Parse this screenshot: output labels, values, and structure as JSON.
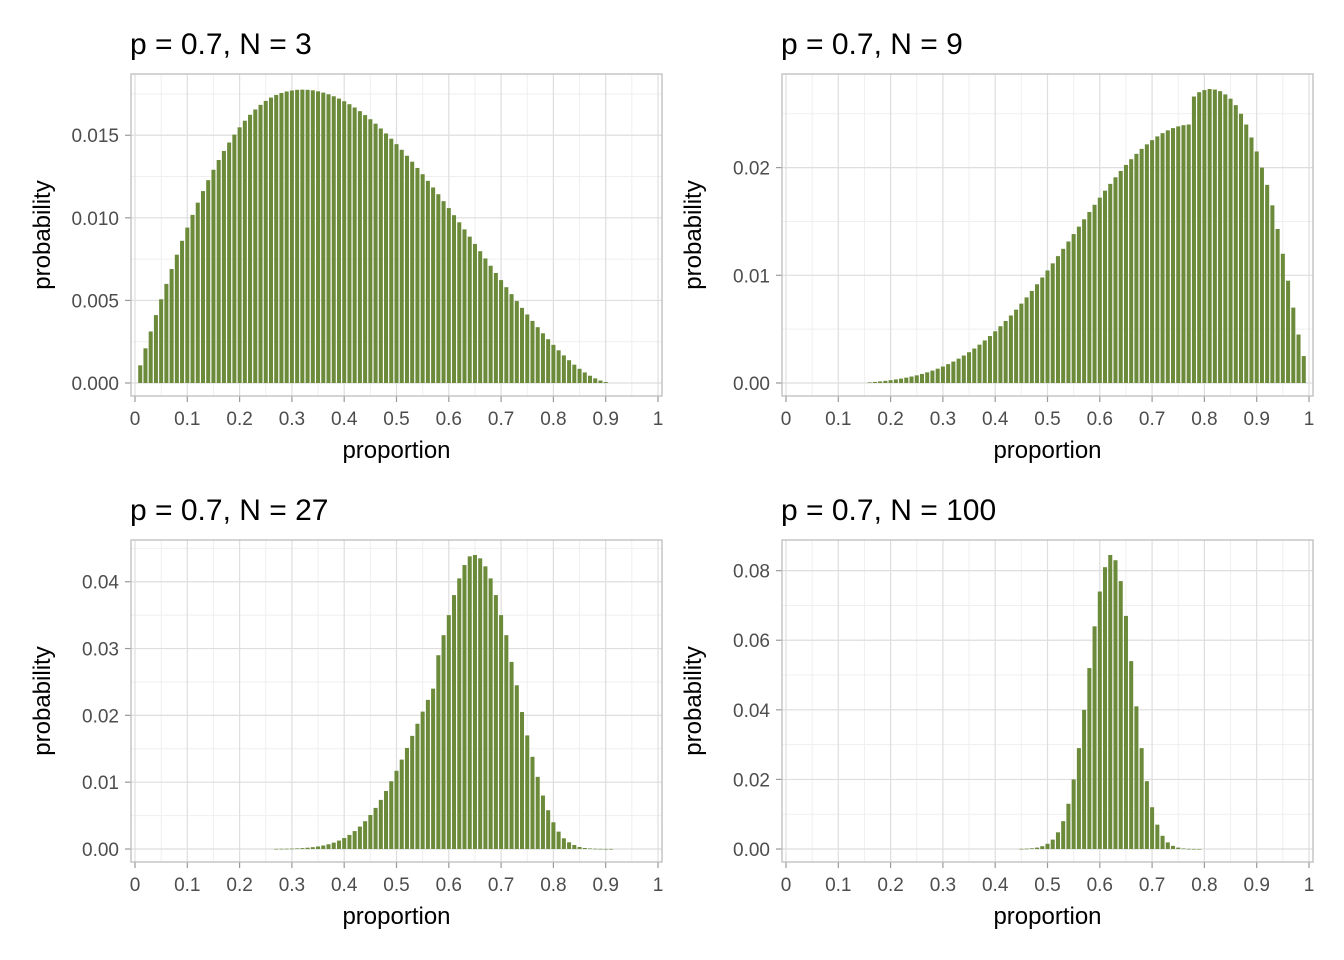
{
  "colors": {
    "bar": "#6b8a3a",
    "grid_major": "#dedede",
    "grid_minor": "#efefef",
    "panel_border": "#bdbdbd",
    "axis_tick": "#9a9a9a",
    "tick_label": "#4d4d4d"
  },
  "chart_data": [
    {
      "type": "bar",
      "title": "p = 0.7, N = 3",
      "xlabel": "proportion",
      "ylabel": "probability",
      "p": 0.7,
      "N": 3,
      "x_ticks": [
        "0",
        "0.1",
        "0.2",
        "0.3",
        "0.4",
        "0.5",
        "0.6",
        "0.7",
        "0.8",
        "0.9",
        "1"
      ],
      "y_ticks": [
        "0.000",
        "0.005",
        "0.010",
        "0.015"
      ],
      "y_tick_values": [
        0,
        0.005,
        0.01,
        0.015
      ],
      "xlim": [
        0,
        1
      ],
      "ylim": [
        0,
        0.0178
      ],
      "grid": true,
      "categories_note": "proportion bins 0.01 to 0.99 step 0.01",
      "values": [
        0.00107,
        0.0021,
        0.00312,
        0.00411,
        0.00507,
        0.006,
        0.0069,
        0.00777,
        0.00861,
        0.00941,
        0.01018,
        0.01092,
        0.01162,
        0.01228,
        0.01291,
        0.0135,
        0.01405,
        0.01456,
        0.01504,
        0.01548,
        0.01588,
        0.01624,
        0.01656,
        0.01684,
        0.01708,
        0.01728,
        0.01744,
        0.01756,
        0.01765,
        0.01771,
        0.01775,
        0.01776,
        0.01775,
        0.01772,
        0.01766,
        0.01758,
        0.01748,
        0.01736,
        0.01722,
        0.01706,
        0.01688,
        0.01668,
        0.01646,
        0.01622,
        0.01597,
        0.0157,
        0.01541,
        0.01511,
        0.01479,
        0.01446,
        0.01412,
        0.01376,
        0.0134,
        0.01302,
        0.01264,
        0.01224,
        0.01184,
        0.01143,
        0.01101,
        0.01059,
        0.01016,
        0.00973,
        0.0093,
        0.00886,
        0.00842,
        0.00798,
        0.00754,
        0.0071,
        0.00666,
        0.00623,
        0.0058,
        0.00538,
        0.00496,
        0.00455,
        0.00415,
        0.00376,
        0.00338,
        0.00301,
        0.00265,
        0.00231,
        0.00198,
        0.00167,
        0.00138,
        0.00111,
        0.00086,
        0.00064,
        0.00044,
        0.00028,
        0.00015,
        6e-05,
        0.0,
        0.0,
        0.0,
        0.0,
        0.0,
        0.0,
        0.0,
        0.0,
        0.0
      ]
    },
    {
      "type": "bar",
      "title": "p = 0.7, N = 9",
      "xlabel": "proportion",
      "ylabel": "probability",
      "p": 0.7,
      "N": 9,
      "x_ticks": [
        "0",
        "0.1",
        "0.2",
        "0.3",
        "0.4",
        "0.5",
        "0.6",
        "0.7",
        "0.8",
        "0.9",
        "1"
      ],
      "y_ticks": [
        "0.00",
        "0.01",
        "0.02"
      ],
      "y_tick_values": [
        0,
        0.01,
        0.02
      ],
      "xlim": [
        0,
        1
      ],
      "ylim": [
        0,
        0.0273
      ],
      "grid": true,
      "categories_note": "proportion bins 0.01 to 0.99 step 0.01",
      "values": [
        0,
        0,
        0,
        0,
        0,
        0,
        0,
        0,
        0,
        0,
        0,
        0,
        0,
        0,
        0,
        6e-05,
        0.0001,
        0.00015,
        0.0002,
        0.00026,
        0.00033,
        0.00041,
        0.0005,
        0.0006,
        0.00071,
        0.00084,
        0.00099,
        0.00115,
        0.00133,
        0.00153,
        0.00175,
        0.00199,
        0.00226,
        0.00255,
        0.00286,
        0.0032,
        0.00356,
        0.00395,
        0.00436,
        0.0048,
        0.00527,
        0.00576,
        0.00627,
        0.00681,
        0.00737,
        0.00795,
        0.00855,
        0.00917,
        0.0098,
        0.01045,
        0.01111,
        0.01178,
        0.01246,
        0.01314,
        0.01383,
        0.01452,
        0.0152,
        0.01588,
        0.01655,
        0.01721,
        0.01786,
        0.01849,
        0.0191,
        0.01969,
        0.02025,
        0.02078,
        0.02128,
        0.02174,
        0.02216,
        0.02255,
        0.0229,
        0.0232,
        0.02346,
        0.02367,
        0.02383,
        0.02394,
        0.024,
        0.0266,
        0.027,
        0.0272,
        0.0273,
        0.02725,
        0.0271,
        0.0268,
        0.0264,
        0.0258,
        0.025,
        0.024,
        0.0228,
        0.0215,
        0.02,
        0.0184,
        0.0165,
        0.0143,
        0.012,
        0.0095,
        0.007,
        0.0045,
        0.0025
      ]
    },
    {
      "type": "bar",
      "title": "p = 0.7, N = 27",
      "xlabel": "proportion",
      "ylabel": "probability",
      "p": 0.7,
      "N": 27,
      "x_ticks": [
        "0",
        "0.1",
        "0.2",
        "0.3",
        "0.4",
        "0.5",
        "0.6",
        "0.7",
        "0.8",
        "0.9",
        "1"
      ],
      "y_ticks": [
        "0.00",
        "0.01",
        "0.02",
        "0.03",
        "0.04"
      ],
      "y_tick_values": [
        0,
        0.01,
        0.02,
        0.03,
        0.04
      ],
      "xlim": [
        0,
        1
      ],
      "ylim": [
        0,
        0.044
      ],
      "grid": true,
      "categories_note": "proportion bins 0.27 to 0.91 step 0.01",
      "values": [
        2e-05,
        3e-05,
        4e-05,
        6e-05,
        9e-05,
        0.00013,
        0.00019,
        0.00027,
        0.00038,
        0.00052,
        0.00071,
        0.00095,
        0.00126,
        0.00164,
        0.00211,
        0.00268,
        0.00336,
        0.00416,
        0.00509,
        0.00615,
        0.00735,
        0.00868,
        0.01014,
        0.01171,
        0.01338,
        0.01513,
        0.01693,
        0.01875,
        0.02056,
        0.02232,
        0.024,
        0.029,
        0.032,
        0.035,
        0.038,
        0.0405,
        0.0425,
        0.0438,
        0.044,
        0.0435,
        0.0423,
        0.0405,
        0.038,
        0.035,
        0.032,
        0.028,
        0.0245,
        0.0205,
        0.017,
        0.0138,
        0.0108,
        0.008,
        0.0058,
        0.004,
        0.0026,
        0.0016,
        0.001,
        0.0006,
        0.0003,
        0.00015,
        8e-05,
        4e-05,
        2e-05,
        1e-05,
        1e-05
      ]
    },
    {
      "type": "bar",
      "title": "p = 0.7, N = 100",
      "xlabel": "proportion",
      "ylabel": "probability",
      "p": 0.7,
      "N": 100,
      "x_ticks": [
        "0",
        "0.1",
        "0.2",
        "0.3",
        "0.4",
        "0.5",
        "0.6",
        "0.7",
        "0.8",
        "0.9",
        "1"
      ],
      "y_ticks": [
        "0.00",
        "0.02",
        "0.04",
        "0.06",
        "0.08"
      ],
      "y_tick_values": [
        0,
        0.02,
        0.04,
        0.06,
        0.08
      ],
      "xlim": [
        0,
        1
      ],
      "ylim": [
        0,
        0.0845
      ],
      "grid": true,
      "categories_note": "proportion bins 0.45 to 0.81 step 0.01",
      "values": [
        5e-05,
        0.0001,
        0.0002,
        0.0004,
        0.0008,
        0.0015,
        0.0027,
        0.0048,
        0.008,
        0.013,
        0.02,
        0.029,
        0.04,
        0.052,
        0.064,
        0.074,
        0.081,
        0.0845,
        0.083,
        0.077,
        0.067,
        0.054,
        0.041,
        0.029,
        0.0195,
        0.012,
        0.007,
        0.0038,
        0.0019,
        0.0009,
        0.0004,
        0.00015,
        5e-05,
        2e-05,
        1e-05,
        0.0,
        0.0
      ]
    }
  ]
}
